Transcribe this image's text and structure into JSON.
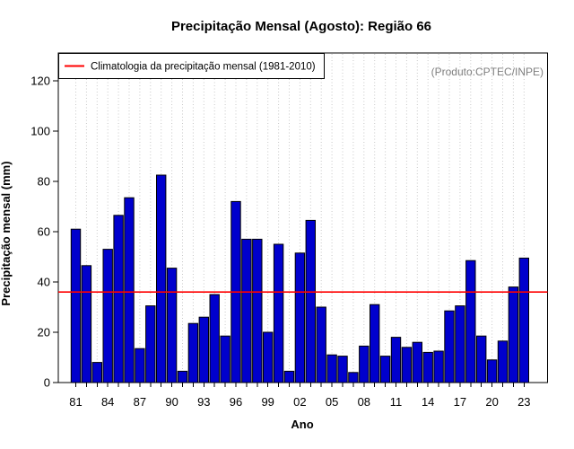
{
  "chart_data": {
    "type": "bar",
    "title": "Precipitação Mensal (Agosto): Região 66",
    "xlabel": "Ano",
    "ylabel": "Precipitação mensal (mm)",
    "annotation": "(Produto:CPTEC/INPE)",
    "ylim": [
      0,
      131
    ],
    "yticks": [
      0,
      20,
      40,
      60,
      80,
      100,
      120
    ],
    "years": [
      1981,
      1982,
      1983,
      1984,
      1985,
      1986,
      1987,
      1988,
      1989,
      1990,
      1991,
      1992,
      1993,
      1994,
      1995,
      1996,
      1997,
      1998,
      1999,
      2000,
      2001,
      2002,
      2003,
      2004,
      2005,
      2006,
      2007,
      2008,
      2009,
      2010,
      2011,
      2012,
      2013,
      2014,
      2015,
      2016,
      2017,
      2018,
      2019,
      2020,
      2021,
      2022,
      2023
    ],
    "values": [
      61,
      46.5,
      8,
      53,
      66.5,
      73.5,
      13.5,
      30.5,
      82.5,
      45.5,
      4.5,
      23.5,
      26,
      35,
      18.5,
      72,
      57,
      57,
      20,
      55,
      4.5,
      51.5,
      64.5,
      30,
      11,
      10.5,
      4,
      14.5,
      31,
      10.5,
      18,
      14,
      16,
      12,
      12.5,
      28.5,
      30.5,
      48.5,
      18.5,
      9,
      16.5,
      38,
      49.5
    ],
    "x_ticks": {
      "label_years": [
        1981,
        1984,
        1987,
        1990,
        1993,
        1996,
        1999,
        2002,
        2005,
        2008,
        2011,
        2014,
        2017,
        2020,
        2023
      ],
      "labels": [
        "81",
        "84",
        "87",
        "90",
        "93",
        "96",
        "99",
        "02",
        "05",
        "08",
        "11",
        "14",
        "17",
        "20",
        "23"
      ]
    },
    "climatology": {
      "value": 36,
      "label": "Climatologia da precipitação mensal (1981-2010)",
      "color": "#ff0000"
    },
    "bar_color": "#0000cd",
    "bar_border_color": "#000000",
    "grid": "vertical-dotted",
    "grid_color": "#c9c9c9",
    "legend_position": "topleft",
    "annotation_color": "#7f7f7f"
  }
}
